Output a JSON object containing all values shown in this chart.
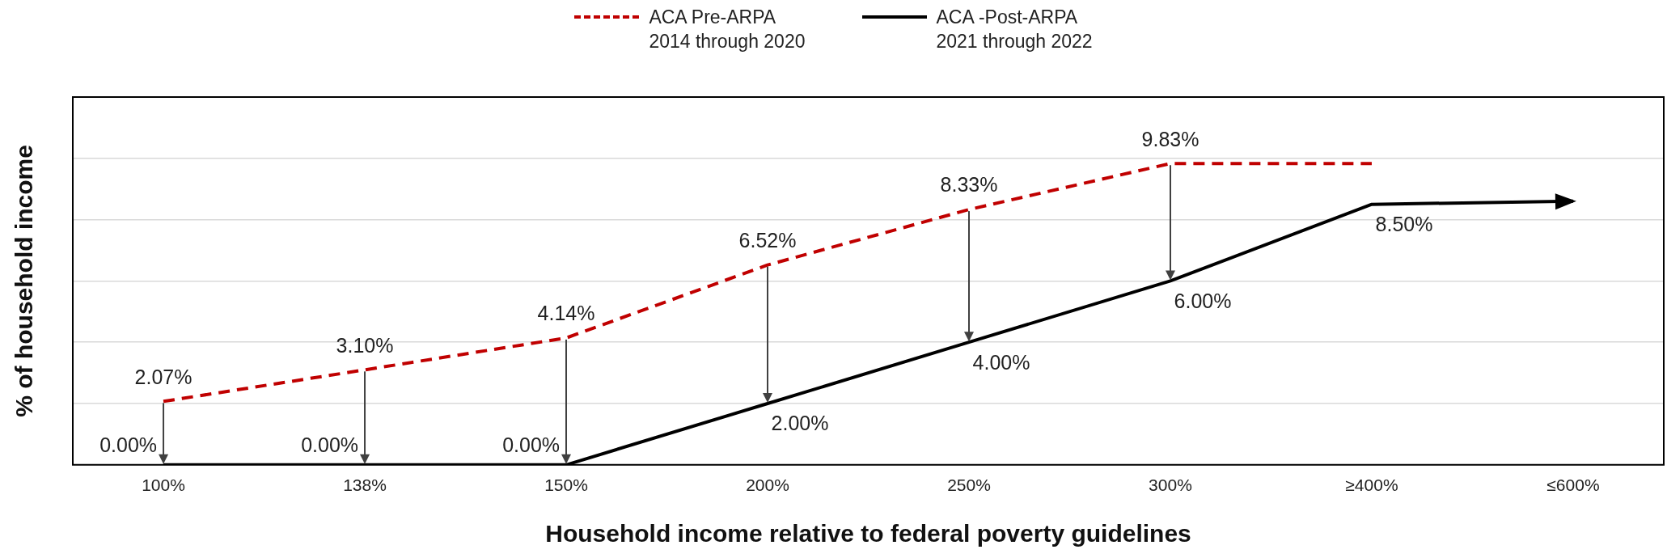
{
  "chart_data": {
    "type": "line",
    "xlabel": "Household income relative to federal poverty guidelines",
    "ylabel": "% of household income",
    "categories": [
      "100%",
      "138%",
      "150%",
      "200%",
      "250%",
      "300%",
      "≥400%",
      "≤600%"
    ],
    "series": [
      {
        "name": "ACA Pre-ARPA\n2014 through 2020",
        "color": "#c00000",
        "line_style": "dashed",
        "values": [
          2.07,
          3.1,
          4.14,
          6.52,
          8.33,
          9.83,
          9.83,
          null
        ],
        "value_labels": [
          "2.07%",
          "3.10%",
          "4.14%",
          "6.52%",
          "8.33%",
          "9.83%",
          null,
          null
        ]
      },
      {
        "name": "ACA -Post-ARPA\n2021 through 2022",
        "color": "#000000",
        "line_style": "solid",
        "values": [
          0,
          0,
          0,
          2,
          4,
          6,
          8.5,
          8.6
        ],
        "value_labels": [
          "0.00%",
          "0.00%",
          "0.00%",
          "2.00%",
          "4.00%",
          "6.00%",
          "8.50%",
          null
        ]
      }
    ],
    "ylim": [
      0,
      12
    ],
    "yticks": [
      {
        "value": 0,
        "label": null
      },
      {
        "value": 2,
        "label": null
      },
      {
        "value": 4,
        "label": null
      },
      {
        "value": 6,
        "label": null
      },
      {
        "value": 8,
        "label": null
      },
      {
        "value": 10,
        "label": null
      },
      {
        "value": 12,
        "label": null
      }
    ],
    "tick_labels": "x",
    "grid": "y",
    "legend": "top",
    "marker": "none"
  }
}
